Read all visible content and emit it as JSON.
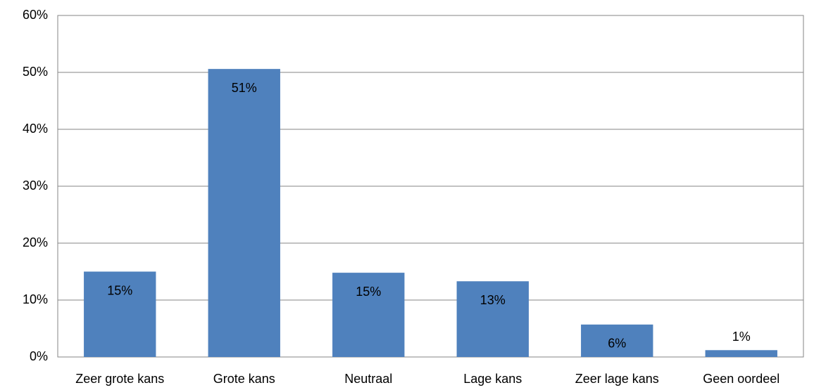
{
  "chart_data": {
    "type": "bar",
    "categories": [
      "Zeer grote kans",
      "Grote kans",
      "Neutraal",
      "Lage kans",
      "Zeer lage kans",
      "Geen oordeel"
    ],
    "values": [
      15,
      50.6,
      14.8,
      13.3,
      5.7,
      1.2
    ],
    "value_labels": [
      "15%",
      "51%",
      "15%",
      "13%",
      "6%",
      "1%"
    ],
    "color": "#4f81bd",
    "ylim": [
      0,
      60
    ],
    "yticks": [
      {
        "value": 0,
        "label": "0%"
      },
      {
        "value": 10,
        "label": "10%"
      },
      {
        "value": 20,
        "label": "20%"
      },
      {
        "value": 30,
        "label": "30%"
      },
      {
        "value": 40,
        "label": "40%"
      },
      {
        "value": 50,
        "label": "50%"
      },
      {
        "value": 60,
        "label": "60%"
      }
    ],
    "grid": true
  }
}
